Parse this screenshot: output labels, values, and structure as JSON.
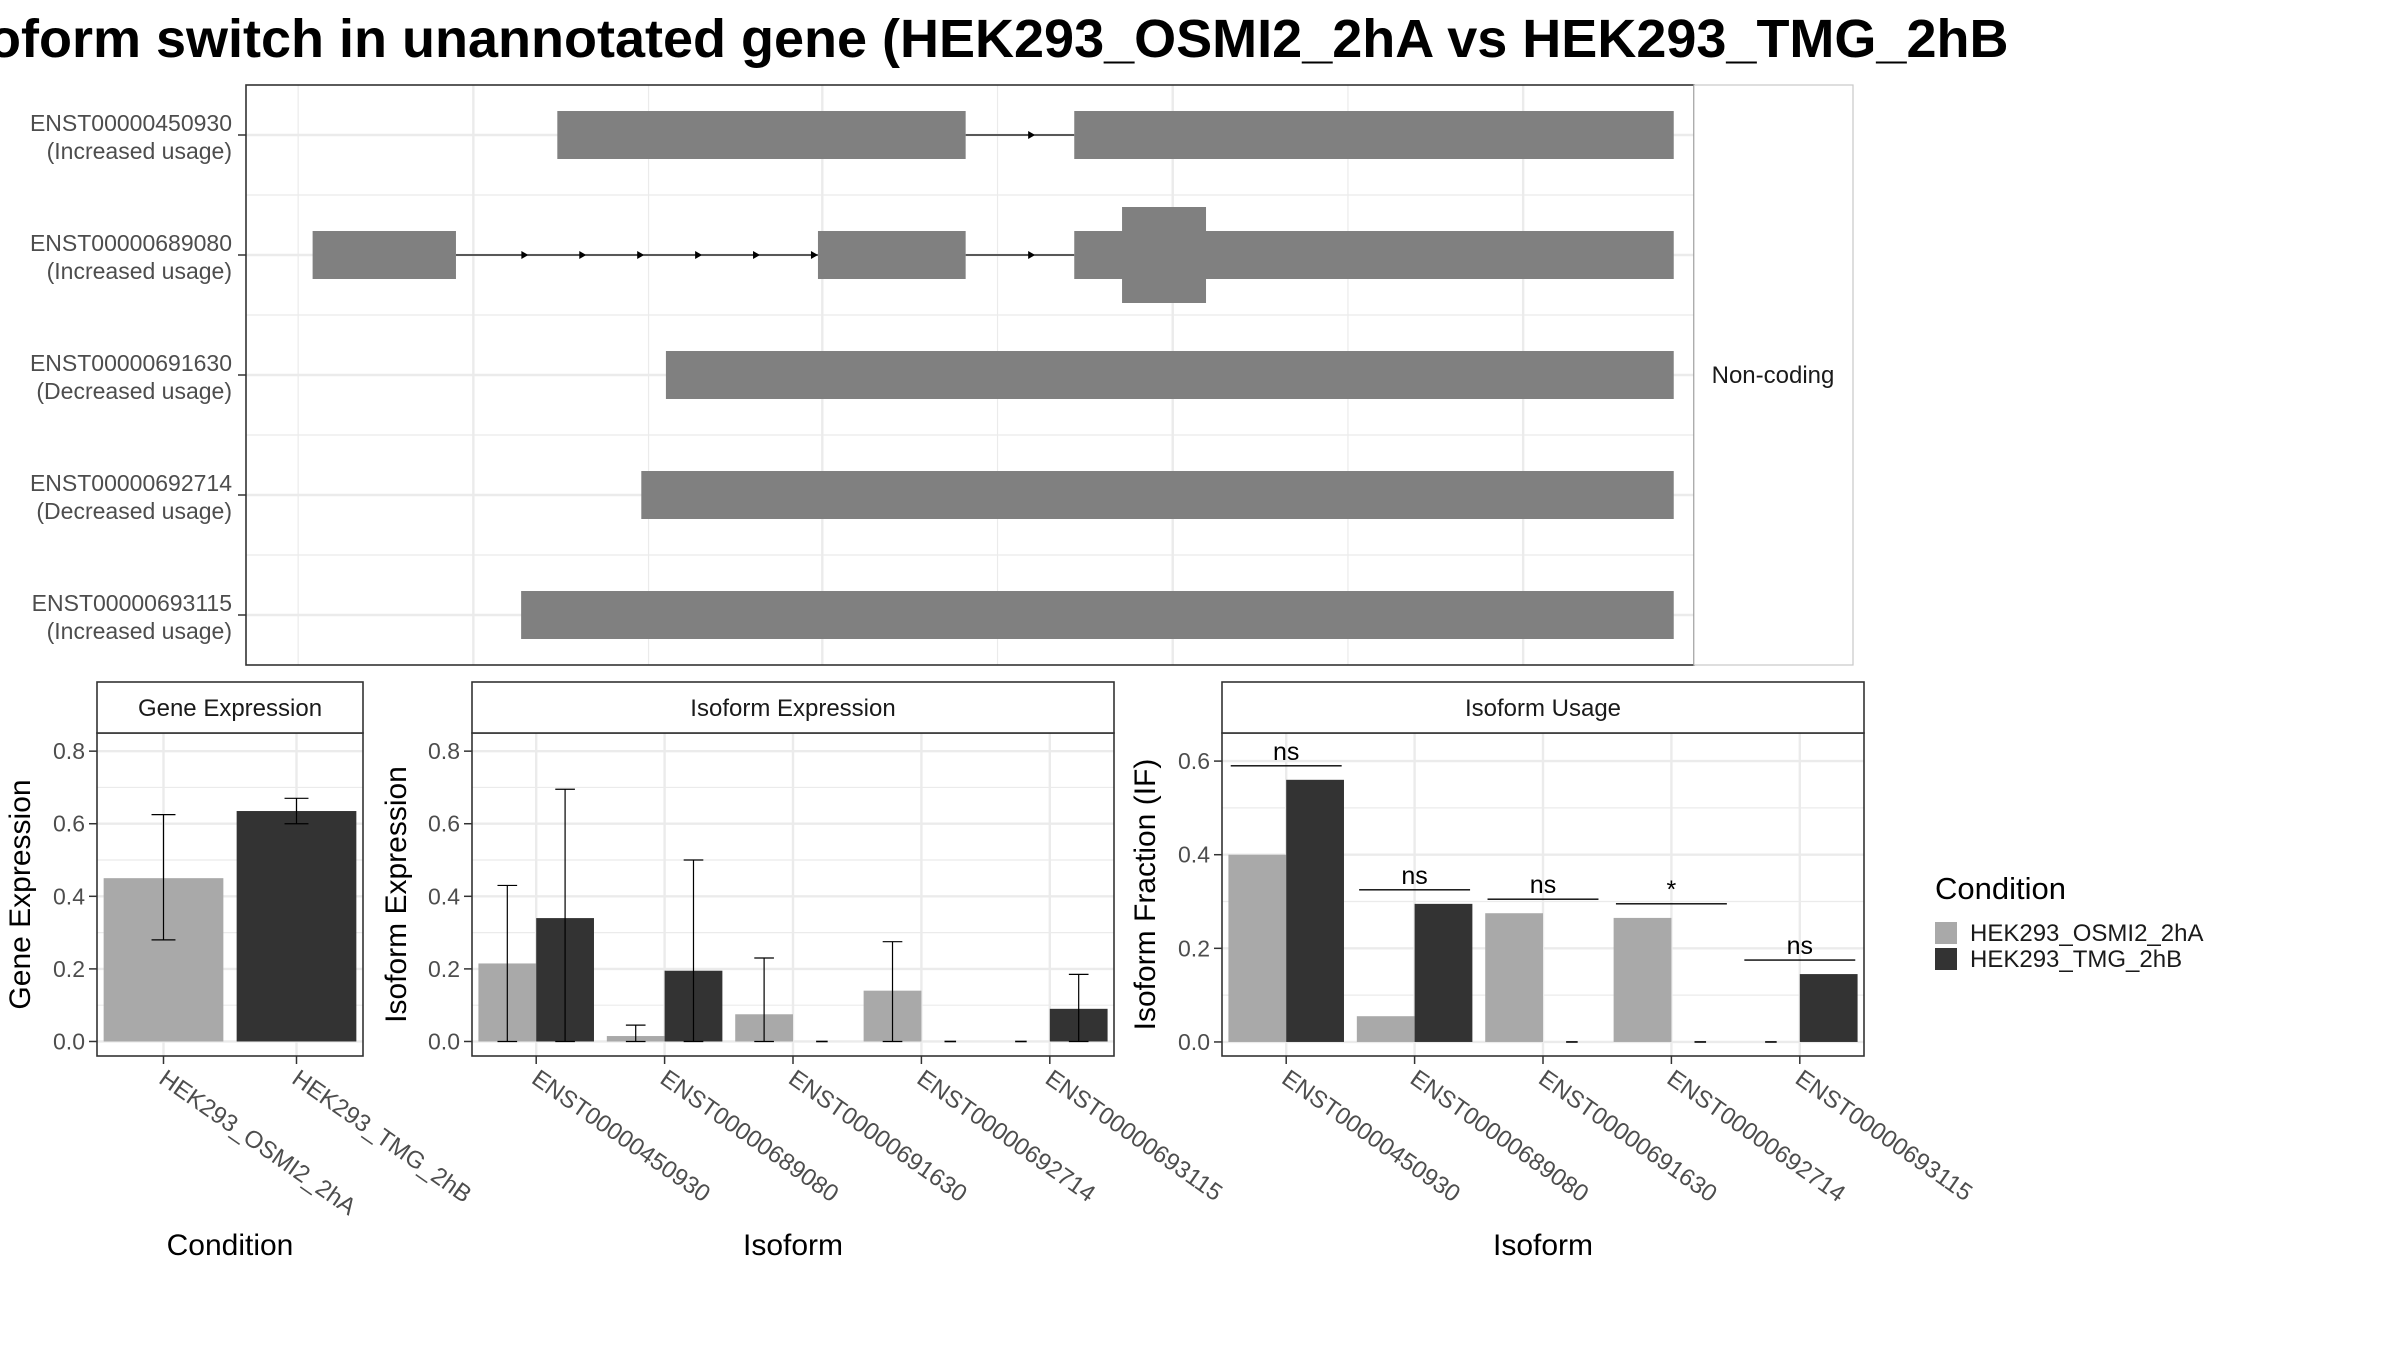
{
  "title": "oform switch in unannotated gene (HEK293_OSMI2_2hA vs HEK293_TMG_2hB",
  "colors": {
    "condition_a": "#a9a9a9",
    "condition_b": "#333333",
    "exon": "#808080",
    "grid": "#ebebeb",
    "panel_border": "#333333",
    "strip_border": "#333333",
    "axis_text": "#4d4d4d",
    "text": "#1a1a1a"
  },
  "chart_data": [
    {
      "id": "transcript_structure",
      "type": "gene_structure",
      "strip_label": "Non-coding",
      "xlim": [
        0,
        1
      ],
      "transcripts": [
        {
          "id": "ENST00000450930",
          "usage": "(Increased usage)",
          "exons": [
            [
              0.215,
              0.497
            ],
            [
              0.572,
              0.986
            ]
          ],
          "thick": [],
          "arrows": [
            0.545,
            0.582
          ]
        },
        {
          "id": "ENST00000689080",
          "usage": "(Increased usage)",
          "exons": [
            [
              0.046,
              0.145
            ],
            [
              0.395,
              0.497
            ],
            [
              0.572,
              0.986
            ]
          ],
          "thick": [
            [
              0.605,
              0.663
            ]
          ],
          "arrows": [
            0.195,
            0.235,
            0.275,
            0.315,
            0.355,
            0.395,
            0.545,
            0.582
          ]
        },
        {
          "id": "ENST00000691630",
          "usage": "(Decreased usage)",
          "exons": [
            [
              0.29,
              0.986
            ]
          ],
          "thick": [],
          "arrows": []
        },
        {
          "id": "ENST00000692714",
          "usage": "(Decreased usage)",
          "exons": [
            [
              0.273,
              0.986
            ]
          ],
          "thick": [],
          "arrows": []
        },
        {
          "id": "ENST00000693115",
          "usage": "(Increased usage)",
          "exons": [
            [
              0.19,
              0.986
            ]
          ],
          "thick": [],
          "arrows": []
        }
      ]
    },
    {
      "id": "gene_expression",
      "type": "bar",
      "strip_label": "Gene Expression",
      "xlabel": "Condition",
      "ylabel": "Gene Expression",
      "ylim": [
        -0.04,
        0.85
      ],
      "yticks": [
        0.0,
        0.2,
        0.4,
        0.6,
        0.8
      ],
      "ytick_labels": [
        "0.0",
        "0.2",
        "0.4",
        "0.6",
        "0.8"
      ],
      "categories": [
        "HEK293_OSMI2_2hA",
        "HEK293_TMG_2hB"
      ],
      "values": [
        0.45,
        0.635
      ],
      "errors": [
        [
          0.28,
          0.625
        ],
        [
          0.6,
          0.67
        ]
      ]
    },
    {
      "id": "isoform_expression",
      "type": "bar",
      "strip_label": "Isoform Expression",
      "xlabel": "Isoform",
      "ylabel": "Isoform Expression",
      "ylim": [
        -0.04,
        0.85
      ],
      "yticks": [
        0.0,
        0.2,
        0.4,
        0.6,
        0.8
      ],
      "ytick_labels": [
        "0.0",
        "0.2",
        "0.4",
        "0.6",
        "0.8"
      ],
      "categories": [
        "ENST00000450930",
        "ENST00000689080",
        "ENST00000691630",
        "ENST00000692714",
        "ENST00000693115"
      ],
      "series": [
        {
          "name": "HEK293_OSMI2_2hA",
          "values": [
            0.215,
            0.015,
            0.075,
            0.14,
            0.0
          ],
          "errors": [
            [
              0.0,
              0.43
            ],
            [
              0.0,
              0.045
            ],
            [
              0.0,
              0.23
            ],
            [
              0.0,
              0.275
            ],
            null
          ]
        },
        {
          "name": "HEK293_TMG_2hB",
          "values": [
            0.34,
            0.195,
            0.0,
            0.0,
            0.09
          ],
          "errors": [
            [
              0.0,
              0.695
            ],
            [
              0.0,
              0.5
            ],
            null,
            null,
            [
              0.0,
              0.185
            ]
          ]
        }
      ]
    },
    {
      "id": "isoform_usage",
      "type": "bar",
      "strip_label": "Isoform Usage",
      "xlabel": "Isoform",
      "ylabel": "Isoform Fraction (IF)",
      "ylim": [
        -0.03,
        0.66
      ],
      "yticks": [
        0.0,
        0.2,
        0.4,
        0.6
      ],
      "ytick_labels": [
        "0.0",
        "0.2",
        "0.4",
        "0.6"
      ],
      "categories": [
        "ENST00000450930",
        "ENST00000689080",
        "ENST00000691630",
        "ENST00000692714",
        "ENST00000693115"
      ],
      "series": [
        {
          "name": "HEK293_OSMI2_2hA",
          "values": [
            0.4,
            0.055,
            0.275,
            0.265,
            0.0
          ]
        },
        {
          "name": "HEK293_TMG_2hB",
          "values": [
            0.56,
            0.295,
            0.0,
            0.0,
            0.145
          ]
        }
      ],
      "significance": [
        {
          "label": "ns",
          "y": 0.59
        },
        {
          "label": "ns",
          "y": 0.325
        },
        {
          "label": "ns",
          "y": 0.305
        },
        {
          "label": "*",
          "y": 0.295
        },
        {
          "label": "ns",
          "y": 0.175
        }
      ]
    }
  ],
  "legend": {
    "title": "Condition",
    "position": "right",
    "items": [
      "HEK293_OSMI2_2hA",
      "HEK293_TMG_2hB"
    ]
  }
}
